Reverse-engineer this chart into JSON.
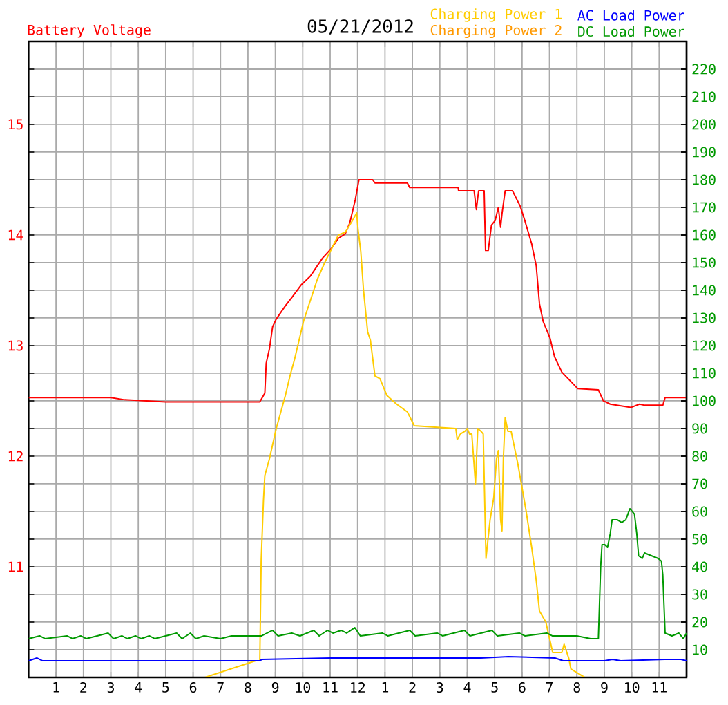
{
  "chart_data": {
    "type": "line",
    "title": "05/21/2012",
    "xlim": [
      "2012-05-21T00:00",
      "2012-05-22T00:00"
    ],
    "xticks": [
      {
        "value": "2012-05-21T01:00",
        "label": "1"
      },
      {
        "value": "2012-05-21T02:00",
        "label": "2"
      },
      {
        "value": "2012-05-21T03:00",
        "label": "3"
      },
      {
        "value": "2012-05-21T04:00",
        "label": "4"
      },
      {
        "value": "2012-05-21T05:00",
        "label": "5"
      },
      {
        "value": "2012-05-21T06:00",
        "label": "6"
      },
      {
        "value": "2012-05-21T07:00",
        "label": "7"
      },
      {
        "value": "2012-05-21T08:00",
        "label": "8"
      },
      {
        "value": "2012-05-21T09:00",
        "label": "9"
      },
      {
        "value": "2012-05-21T10:00",
        "label": "10"
      },
      {
        "value": "2012-05-21T11:00",
        "label": "11"
      },
      {
        "value": "2012-05-21T12:00",
        "label": "12"
      },
      {
        "value": "2012-05-21T13:00",
        "label": "1"
      },
      {
        "value": "2012-05-21T14:00",
        "label": "2"
      },
      {
        "value": "2012-05-21T15:00",
        "label": "3"
      },
      {
        "value": "2012-05-21T16:00",
        "label": "4"
      },
      {
        "value": "2012-05-21T17:00",
        "label": "5"
      },
      {
        "value": "2012-05-21T18:00",
        "label": "6"
      },
      {
        "value": "2012-05-21T19:00",
        "label": "7"
      },
      {
        "value": "2012-05-21T20:00",
        "label": "8"
      },
      {
        "value": "2012-05-21T21:00",
        "label": "9"
      },
      {
        "value": "2012-05-21T22:00",
        "label": "10"
      },
      {
        "value": "2012-05-21T23:00",
        "label": "11"
      }
    ],
    "ylim": [
      10,
      15.75
    ],
    "yticks": [
      {
        "value": 10.25,
        "label": null
      },
      {
        "value": 10.5,
        "label": null
      },
      {
        "value": 10.75,
        "label": null
      },
      11,
      {
        "value": 11.25,
        "label": null
      },
      {
        "value": 11.5,
        "label": null
      },
      {
        "value": 11.75,
        "label": null
      },
      12,
      {
        "value": 12.25,
        "label": null
      },
      {
        "value": 12.5,
        "label": null
      },
      {
        "value": 12.75,
        "label": null
      },
      13,
      {
        "value": 13.25,
        "label": null
      },
      {
        "value": 13.5,
        "label": null
      },
      {
        "value": 13.75,
        "label": null
      },
      14,
      {
        "value": 14.25,
        "label": null
      },
      {
        "value": 14.5,
        "label": null
      },
      {
        "value": 14.75,
        "label": null
      },
      15,
      {
        "value": 15.25,
        "label": null
      },
      {
        "value": 15.5,
        "label": null
      }
    ],
    "y2lim": [
      0,
      230
    ],
    "y2ticks": [
      10,
      20,
      30,
      40,
      50,
      60,
      70,
      80,
      90,
      100,
      110,
      120,
      130,
      140,
      150,
      160,
      170,
      180,
      190,
      200,
      210,
      220
    ],
    "grid": true,
    "legend": "top",
    "series": [
      {
        "name": "Battery Voltage",
        "color": "#ff0000",
        "axis": "y",
        "x": [
          "2012-05-21T00:00",
          "2012-05-21T03:00",
          "2012-05-21T03:30",
          "2012-05-21T05:00",
          "2012-05-21T08:26",
          "2012-05-21T08:37",
          "2012-05-21T08:40",
          "2012-05-21T08:47",
          "2012-05-21T08:54",
          "2012-05-21T09:02",
          "2012-05-21T09:22",
          "2012-05-21T09:37",
          "2012-05-21T09:57",
          "2012-05-21T10:17",
          "2012-05-21T10:43",
          "2012-05-21T11:03",
          "2012-05-21T11:18",
          "2012-05-21T11:33",
          "2012-05-21T11:43",
          "2012-05-21T11:55",
          "2012-05-21T12:03",
          "2012-05-21T12:33",
          "2012-05-21T12:38",
          "2012-05-21T13:49",
          "2012-05-21T13:54",
          "2012-05-21T15:40",
          "2012-05-21T15:41",
          "2012-05-21T16:15",
          "2012-05-21T16:20",
          "2012-05-21T16:23",
          "2012-05-21T16:25",
          "2012-05-21T16:37",
          "2012-05-21T16:40",
          "2012-05-21T16:46",
          "2012-05-21T16:53",
          "2012-05-21T17:01",
          "2012-05-21T17:08",
          "2012-05-21T17:13",
          "2012-05-21T17:16",
          "2012-05-21T17:23",
          "2012-05-21T17:39",
          "2012-05-21T17:56",
          "2012-05-21T18:06",
          "2012-05-21T18:21",
          "2012-05-21T18:31",
          "2012-05-21T18:38",
          "2012-05-21T18:46",
          "2012-05-21T19:01",
          "2012-05-21T19:11",
          "2012-05-21T19:27",
          "2012-05-21T20:02",
          "2012-05-21T20:47",
          "2012-05-21T20:58",
          "2012-05-21T21:13",
          "2012-05-21T21:58",
          "2012-05-21T22:17",
          "2012-05-21T22:28",
          "2012-05-21T23:08",
          "2012-05-21T23:13",
          "2012-05-22T00:00"
        ],
        "values": [
          12.53,
          12.53,
          12.51,
          12.49,
          12.49,
          12.57,
          12.84,
          12.97,
          13.17,
          13.24,
          13.36,
          13.44,
          13.55,
          13.63,
          13.79,
          13.88,
          13.97,
          14.01,
          14.11,
          14.32,
          14.5,
          14.5,
          14.47,
          14.47,
          14.43,
          14.43,
          14.4,
          14.4,
          14.23,
          14.34,
          14.4,
          14.4,
          13.86,
          13.86,
          14.09,
          14.13,
          14.25,
          14.07,
          14.19,
          14.4,
          14.4,
          14.26,
          14.13,
          13.92,
          13.72,
          13.38,
          13.22,
          13.07,
          12.9,
          12.76,
          12.61,
          12.6,
          12.5,
          12.47,
          12.44,
          12.47,
          12.46,
          12.46,
          12.53,
          12.53
        ]
      },
      {
        "name": "Charging Power 1",
        "color": "#ffcc00",
        "axis": "y2",
        "x": [
          "2012-05-21T06:26",
          "2012-05-21T08:17",
          "2012-05-21T08:23",
          "2012-05-21T08:26",
          "2012-05-21T08:29",
          "2012-05-21T08:34",
          "2012-05-21T08:37",
          "2012-05-21T08:47",
          "2012-05-21T09:02",
          "2012-05-21T09:22",
          "2012-05-21T09:32",
          "2012-05-21T09:42",
          "2012-05-21T10:02",
          "2012-05-21T10:32",
          "2012-05-21T10:48",
          "2012-05-21T11:03",
          "2012-05-21T11:18",
          "2012-05-21T11:33",
          "2012-05-21T11:48",
          "2012-05-21T11:58",
          "2012-05-21T12:01",
          "2012-05-21T12:07",
          "2012-05-21T12:13",
          "2012-05-21T12:22",
          "2012-05-21T12:28",
          "2012-05-21T12:38",
          "2012-05-21T12:49",
          "2012-05-21T13:04",
          "2012-05-21T13:24",
          "2012-05-21T13:49",
          "2012-05-21T14:04",
          "2012-05-21T15:35",
          "2012-05-21T15:38",
          "2012-05-21T15:45",
          "2012-05-21T15:55",
          "2012-05-21T16:00",
          "2012-05-21T16:05",
          "2012-05-21T16:10",
          "2012-05-21T16:18",
          "2012-05-21T16:23",
          "2012-05-21T16:30",
          "2012-05-21T16:35",
          "2012-05-21T16:41",
          "2012-05-21T16:50",
          "2012-05-21T16:58",
          "2012-05-21T17:04",
          "2012-05-21T17:08",
          "2012-05-21T17:13",
          "2012-05-21T17:16",
          "2012-05-21T17:19",
          "2012-05-21T17:23",
          "2012-05-21T17:29",
          "2012-05-21T17:36",
          "2012-05-21T17:51",
          "2012-05-21T18:09",
          "2012-05-21T18:21",
          "2012-05-21T18:31",
          "2012-05-21T18:38",
          "2012-05-21T18:52",
          "2012-05-21T19:07",
          "2012-05-21T19:27",
          "2012-05-21T19:32",
          "2012-05-21T19:42",
          "2012-05-21T19:47",
          "2012-05-21T20:17"
        ],
        "values": [
          0,
          6,
          6,
          6,
          42,
          64,
          73,
          79,
          90,
          102,
          109,
          115,
          129,
          144,
          150,
          155,
          160,
          161,
          165,
          168,
          162,
          154,
          140,
          125,
          122,
          109,
          108,
          102,
          99,
          96,
          91,
          90,
          86,
          88,
          89,
          90,
          88,
          88,
          70,
          90,
          89,
          88,
          43,
          57,
          65,
          79,
          82,
          57,
          53,
          79,
          94,
          89,
          89,
          77,
          60,
          47,
          35,
          24,
          20,
          9,
          9,
          12,
          7,
          3,
          0
        ]
      },
      {
        "name": "Charging Power 2",
        "color": "#ff9900",
        "axis": "y2"
      },
      {
        "name": "AC Load Power",
        "color": "#0000ff",
        "axis": "y2",
        "x": [
          "2012-05-21T00:00",
          "2012-05-21T00:18",
          "2012-05-21T00:30",
          "2012-05-21T08:27",
          "2012-05-21T08:30",
          "2012-05-21T11:00",
          "2012-05-21T11:30",
          "2012-05-21T13:00",
          "2012-05-21T16:30",
          "2012-05-21T17:30",
          "2012-05-21T19:12",
          "2012-05-21T19:30",
          "2012-05-21T21:00",
          "2012-05-21T21:18",
          "2012-05-21T21:36",
          "2012-05-21T23:12",
          "2012-05-21T23:48",
          "2012-05-22T00:00"
        ],
        "values": [
          6,
          7,
          6,
          6,
          6.5,
          7,
          7,
          7,
          7,
          7.5,
          7,
          6,
          6,
          6.5,
          6,
          6.5,
          6.5,
          6
        ]
      },
      {
        "name": "DC Load Power",
        "color": "#009900",
        "axis": "y2",
        "x": [
          "2012-05-21T00:00",
          "2012-05-21T00:24",
          "2012-05-21T00:36",
          "2012-05-21T01:24",
          "2012-05-21T01:36",
          "2012-05-21T01:54",
          "2012-05-21T02:06",
          "2012-05-21T02:54",
          "2012-05-21T03:06",
          "2012-05-21T03:24",
          "2012-05-21T03:36",
          "2012-05-21T03:54",
          "2012-05-21T04:06",
          "2012-05-21T04:24",
          "2012-05-21T04:36",
          "2012-05-21T05:24",
          "2012-05-21T05:36",
          "2012-05-21T05:54",
          "2012-05-21T06:06",
          "2012-05-21T06:24",
          "2012-05-21T07:00",
          "2012-05-21T07:24",
          "2012-05-21T07:36",
          "2012-05-21T08:30",
          "2012-05-21T08:54",
          "2012-05-21T09:06",
          "2012-05-21T09:36",
          "2012-05-21T09:54",
          "2012-05-21T10:24",
          "2012-05-21T10:36",
          "2012-05-21T10:54",
          "2012-05-21T11:06",
          "2012-05-21T11:24",
          "2012-05-21T11:36",
          "2012-05-21T11:54",
          "2012-05-21T12:06",
          "2012-05-21T12:54",
          "2012-05-21T13:06",
          "2012-05-21T13:54",
          "2012-05-21T14:06",
          "2012-05-21T14:54",
          "2012-05-21T15:06",
          "2012-05-21T15:54",
          "2012-05-21T16:06",
          "2012-05-21T16:54",
          "2012-05-21T17:06",
          "2012-05-21T17:54",
          "2012-05-21T18:06",
          "2012-05-21T18:54",
          "2012-05-21T19:06",
          "2012-05-21T20:00",
          "2012-05-21T20:30",
          "2012-05-21T20:47",
          "2012-05-21T20:52",
          "2012-05-21T20:55",
          "2012-05-21T21:01",
          "2012-05-21T21:07",
          "2012-05-21T21:13",
          "2012-05-21T21:17",
          "2012-05-21T21:28",
          "2012-05-21T21:38",
          "2012-05-21T21:47",
          "2012-05-21T21:56",
          "2012-05-21T22:06",
          "2012-05-21T22:11",
          "2012-05-21T22:15",
          "2012-05-21T22:23",
          "2012-05-21T22:28",
          "2012-05-21T22:43",
          "2012-05-21T22:58",
          "2012-05-21T23:05",
          "2012-05-21T23:08",
          "2012-05-21T23:13",
          "2012-05-21T23:28",
          "2012-05-21T23:43",
          "2012-05-21T23:53",
          "2012-05-22T00:00"
        ],
        "values": [
          14,
          15,
          14,
          15,
          14,
          15,
          14,
          16,
          14,
          15,
          14,
          15,
          14,
          15,
          14,
          16,
          14,
          16,
          14,
          15,
          14,
          15,
          15,
          15,
          17,
          15,
          16,
          15,
          17,
          15,
          17,
          16,
          17,
          16,
          18,
          15,
          16,
          15,
          17,
          15,
          16,
          15,
          17,
          15,
          17,
          15,
          16,
          15,
          16,
          15,
          15,
          14,
          14,
          40,
          48,
          48,
          47,
          52,
          57,
          57,
          56,
          57,
          61,
          59,
          52,
          44,
          43,
          45,
          44,
          43,
          42,
          37,
          16,
          15,
          16,
          14,
          16
        ]
      }
    ]
  }
}
